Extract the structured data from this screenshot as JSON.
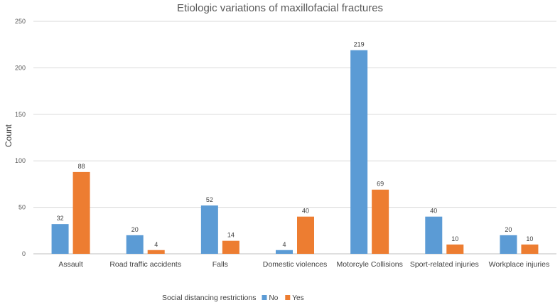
{
  "chart_data": {
    "type": "bar",
    "title": "Etiologic variations of maxillofacial fractures",
    "xlabel": "",
    "ylabel": "Count",
    "ylim": [
      0,
      250
    ],
    "yticks": [
      0,
      50,
      100,
      150,
      200,
      250
    ],
    "grid": true,
    "categories": [
      "Assault",
      "Road traffic accidents",
      "Falls",
      "Domestic violences",
      "Motorcyle Collisions",
      "Sport-related injuries",
      "Workplace injuries"
    ],
    "series": [
      {
        "name": "No",
        "color": "#5b9bd5",
        "values": [
          32,
          20,
          52,
          4,
          219,
          40,
          20
        ]
      },
      {
        "name": "Yes",
        "color": "#ed7d31",
        "values": [
          88,
          4,
          14,
          40,
          69,
          10,
          10
        ]
      }
    ],
    "legend": {
      "title": "Social distancing restrictions",
      "position": "bottom"
    }
  }
}
